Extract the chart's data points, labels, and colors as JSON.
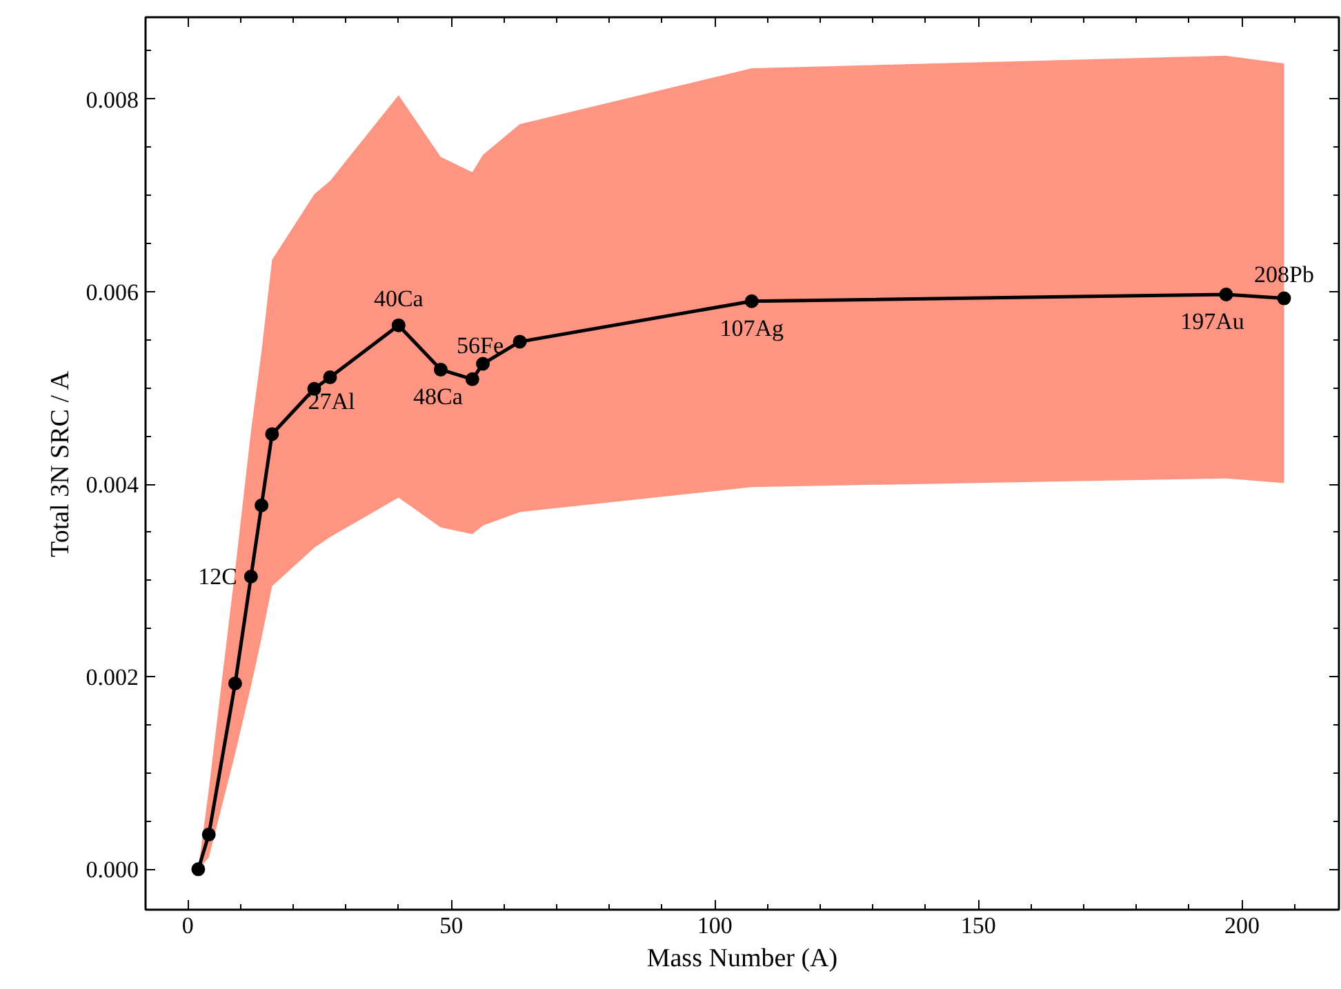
{
  "chart_data": {
    "type": "line",
    "xlabel": "Mass Number (A)",
    "ylabel": "Total 3N SRC / A",
    "x": [
      2,
      4,
      9,
      12,
      14,
      16,
      24,
      27,
      40,
      48,
      54,
      56,
      63,
      107,
      197,
      208
    ],
    "series": [
      {
        "color": "#000000",
        "values": [
          0.0,
          0.00036,
          0.00193,
          0.00304,
          0.00378,
          0.00452,
          0.00499,
          0.00511,
          0.00565,
          0.00519,
          0.00509,
          0.00525,
          0.00548,
          0.0059,
          0.00597,
          0.00593
        ],
        "lower": [
          0.0,
          0.00012,
          0.0012,
          0.0019,
          0.0024,
          0.00294,
          0.00334,
          0.00345,
          0.00386,
          0.00355,
          0.00348,
          0.00357,
          0.00371,
          0.00397,
          0.00406,
          0.00401
        ],
        "upper": [
          0.0,
          0.00083,
          0.00311,
          0.00455,
          0.00538,
          0.00633,
          0.00701,
          0.00715,
          0.00804,
          0.0074,
          0.00724,
          0.00742,
          0.00774,
          0.00832,
          0.00845,
          0.00837
        ]
      }
    ],
    "xlim": [
      -8,
      218.4
    ],
    "ylim": [
      -0.00042,
      0.00885
    ],
    "xticks": [
      0,
      50,
      100,
      150,
      200
    ],
    "yticks": [
      {
        "value": 0,
        "label": "0.000"
      },
      {
        "value": 0.002,
        "label": "0.002"
      },
      {
        "value": 0.004,
        "label": "0.004"
      },
      {
        "value": 0.006,
        "label": "0.006"
      },
      {
        "value": 0.008,
        "label": "0.008"
      }
    ],
    "marker": "circle",
    "line_style": "solid",
    "grid": false,
    "annotations": [
      {
        "text": "12C",
        "x": 12,
        "y": 0.00304
      },
      {
        "text": "27Al",
        "x": 27,
        "y": 0.00511
      },
      {
        "text": "40Ca",
        "x": 40,
        "y": 0.00565
      },
      {
        "text": "48Ca",
        "x": 48,
        "y": 0.00519
      },
      {
        "text": "56Fe",
        "x": 56,
        "y": 0.00525
      },
      {
        "text": "107Ag",
        "x": 107,
        "y": 0.0059
      },
      {
        "text": "197Au",
        "x": 197,
        "y": 0.00597
      },
      {
        "text": "208Pb",
        "x": 208,
        "y": 0.00593
      }
    ]
  }
}
